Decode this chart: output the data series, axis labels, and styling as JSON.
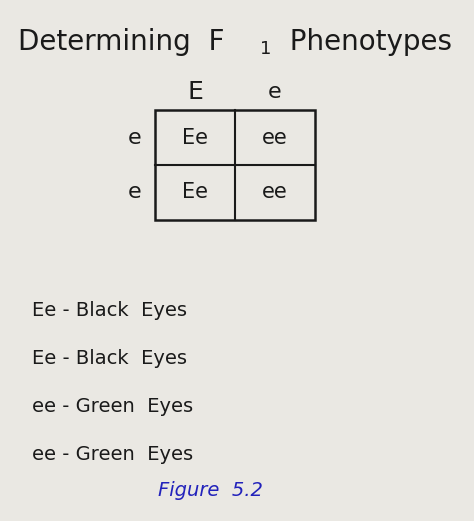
{
  "background_color": "#eae8e3",
  "col_headers": [
    "E",
    "e"
  ],
  "row_headers": [
    "e",
    "e"
  ],
  "cells": [
    [
      "Ee",
      "ee"
    ],
    [
      "Ee",
      "ee"
    ]
  ],
  "legend": [
    [
      "Ee",
      " - Black  Eyes"
    ],
    [
      "Ee",
      " - Black  Eyes"
    ],
    [
      "ee",
      " - Green  Eyes"
    ],
    [
      "ee",
      " - Green  Eyes"
    ]
  ],
  "figure_label": "Figure  5.2",
  "figure_label_color": "#2222bb",
  "text_color": "#1a1a1a"
}
